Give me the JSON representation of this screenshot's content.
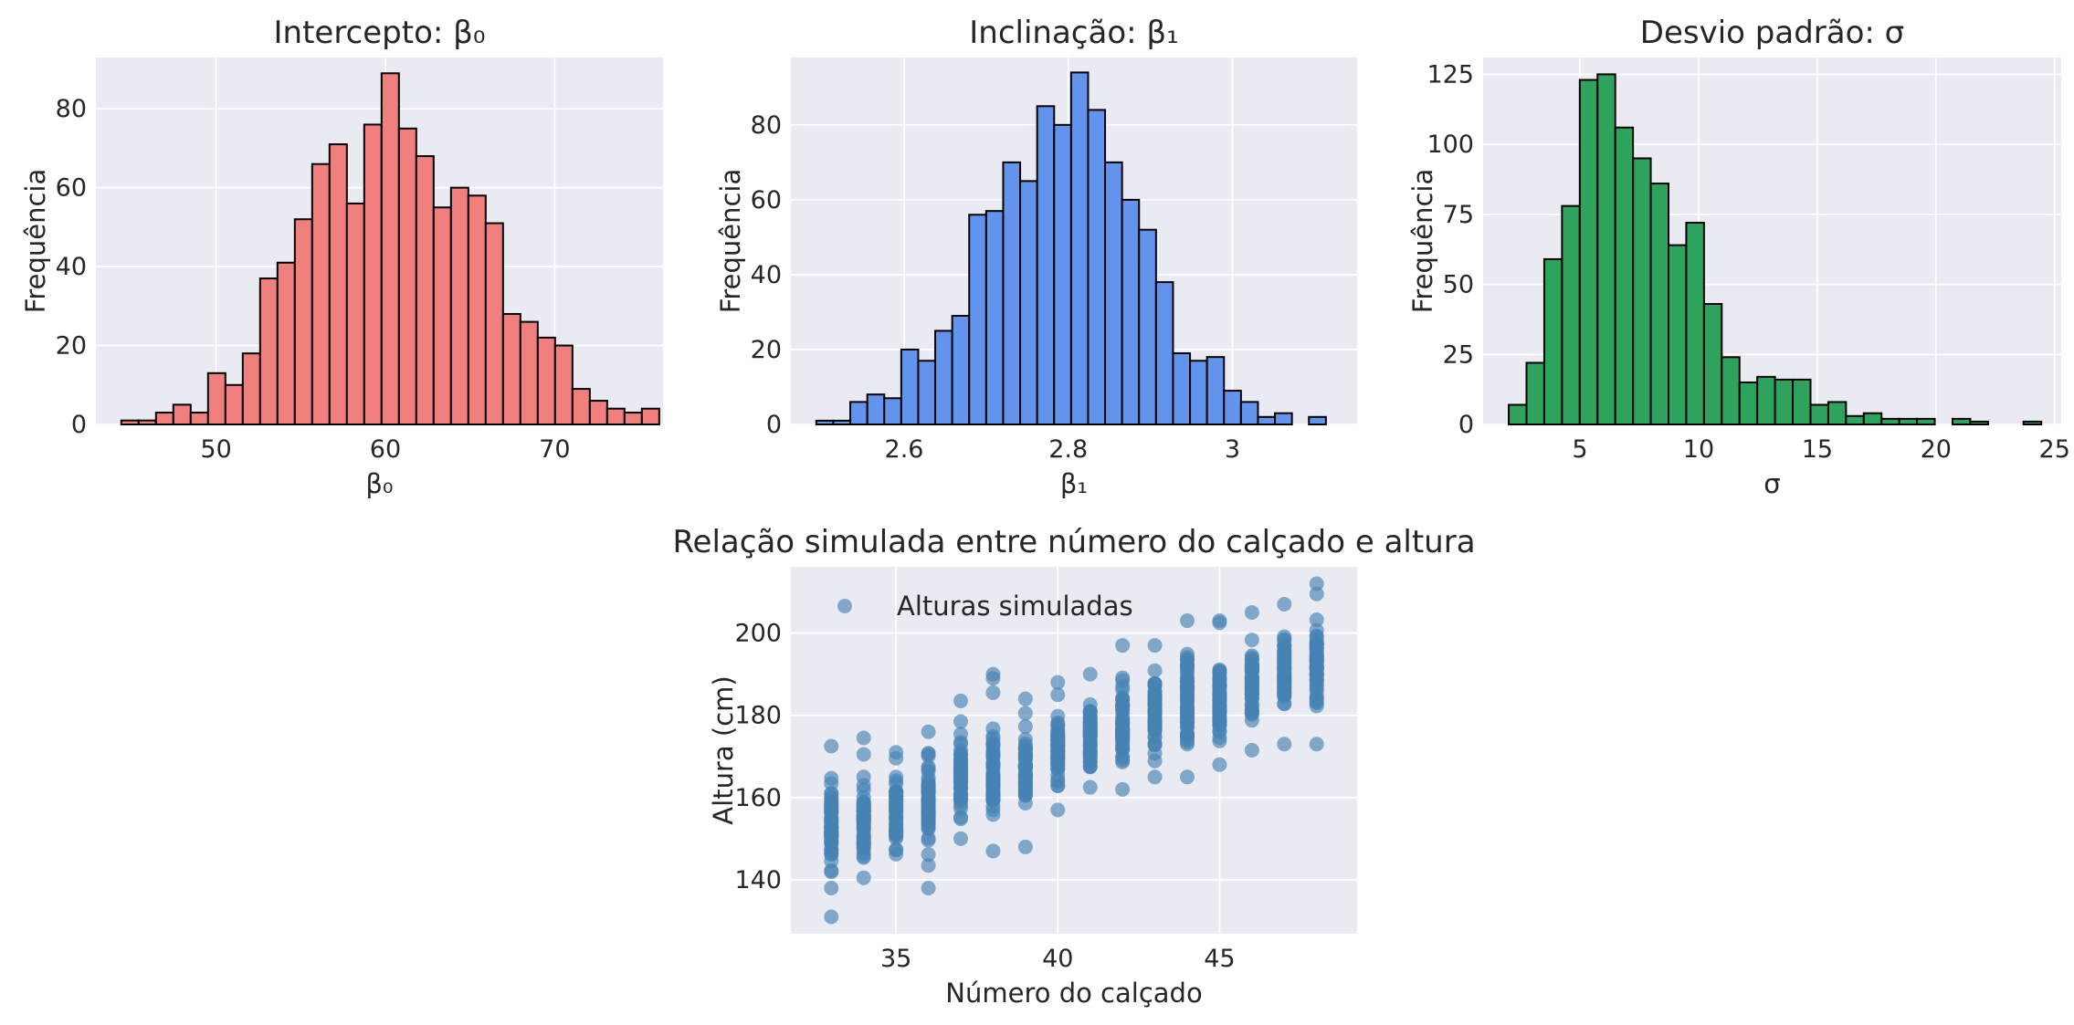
{
  "chart_data": [
    {
      "type": "bar",
      "title": "Intercepto: β₀",
      "xlabel": "β₀",
      "ylabel": "Frequência",
      "xlim": [
        42.9,
        76.4
      ],
      "ylim": [
        0,
        93
      ],
      "xticks": [
        50,
        60,
        70
      ],
      "yticks": [
        0,
        20,
        40,
        60,
        80
      ],
      "grid": true,
      "color": "#f07f7e",
      "edgecolor": "#000000",
      "bin_start": 44.4,
      "bin_width": 1.025,
      "values": [
        1,
        1,
        3,
        5,
        3,
        13,
        10,
        18,
        37,
        41,
        52,
        66,
        71,
        56,
        76,
        89,
        75,
        68,
        55,
        60,
        58,
        51,
        28,
        26,
        22,
        20,
        9,
        6,
        4,
        3,
        4
      ]
    },
    {
      "type": "bar",
      "title": "Inclinação: β₁",
      "xlabel": "β₁",
      "ylabel": "Frequência",
      "xlim": [
        2.462,
        3.152
      ],
      "ylim": [
        0,
        98
      ],
      "xticks": [
        2.6,
        2.8,
        3.0
      ],
      "yticks": [
        0,
        20,
        40,
        60,
        80
      ],
      "grid": true,
      "color": "#6394ed",
      "edgecolor": "#000000",
      "bin_start": 2.493,
      "bin_width": 0.0207,
      "values": [
        1,
        1,
        6,
        8,
        7,
        20,
        17,
        25,
        29,
        56,
        57,
        70,
        65,
        85,
        80,
        94,
        84,
        70,
        60,
        52,
        38,
        19,
        17,
        18,
        9,
        6,
        2,
        3,
        0,
        2
      ]
    },
    {
      "type": "bar",
      "title": "Desvio padrão: σ",
      "xlabel": "σ",
      "ylabel": "Frequência",
      "xlim": [
        0.92,
        25.28
      ],
      "ylim": [
        0,
        131
      ],
      "xticks": [
        5,
        10,
        15,
        20,
        25
      ],
      "yticks": [
        0,
        25,
        50,
        75,
        100,
        125
      ],
      "grid": true,
      "color": "#2ea35d",
      "edgecolor": "#000000",
      "bin_start": 2.0,
      "bin_width": 0.748,
      "values": [
        7,
        22,
        59,
        78,
        123,
        125,
        106,
        95,
        86,
        64,
        72,
        43,
        24,
        15,
        17,
        16,
        16,
        7,
        8,
        3,
        4,
        2,
        2,
        2,
        0,
        2,
        1,
        0,
        0,
        1
      ]
    },
    {
      "type": "scatter",
      "title": "Relação simulada entre número do calçado e altura",
      "xlabel": "Número do calçado",
      "ylabel": "Altura (cm)",
      "xlim": [
        31.75,
        49.25
      ],
      "ylim": [
        126.9,
        216.1
      ],
      "xticks": [
        35,
        40,
        45
      ],
      "yticks": [
        140,
        160,
        180,
        200
      ],
      "grid": true,
      "legend": {
        "label": "Alturas simuladas",
        "position": "top-left"
      },
      "color": "#4682b4",
      "alpha": 0.65,
      "x_values": [
        33,
        34,
        35,
        36,
        37,
        38,
        39,
        40,
        41,
        42,
        43,
        44,
        45,
        46,
        47,
        48
      ],
      "y_ranges": [
        [
          137,
          167.5
        ],
        [
          141,
          167
        ],
        [
          143.5,
          170.5
        ],
        [
          144,
          175.5
        ],
        [
          151,
          179.5
        ],
        [
          150.5,
          180
        ],
        [
          153,
          179
        ],
        [
          158,
          182
        ],
        [
          163,
          187.5
        ],
        [
          164,
          191
        ],
        [
          167,
          194
        ],
        [
          169.5,
          199
        ],
        [
          171,
          197
        ],
        [
          175,
          200
        ],
        [
          177,
          204.5
        ],
        [
          180,
          206
        ]
      ],
      "outliers": [
        [
          33,
          131
        ],
        [
          33,
          138
        ],
        [
          33,
          172.5
        ],
        [
          34,
          140.5
        ],
        [
          34,
          170.5
        ],
        [
          34,
          174.5
        ],
        [
          35,
          171
        ],
        [
          36,
          138
        ],
        [
          36,
          143.5
        ],
        [
          36,
          176
        ],
        [
          37,
          150
        ],
        [
          37,
          183.5
        ],
        [
          38,
          147
        ],
        [
          38,
          185.5
        ],
        [
          38,
          189
        ],
        [
          38,
          190
        ],
        [
          39,
          148
        ],
        [
          39,
          180.5
        ],
        [
          39,
          184
        ],
        [
          40,
          157
        ],
        [
          40,
          185
        ],
        [
          40,
          188
        ],
        [
          41,
          162.5
        ],
        [
          41,
          190
        ],
        [
          42,
          162
        ],
        [
          42,
          197
        ],
        [
          43,
          165
        ],
        [
          43,
          197
        ],
        [
          44,
          165
        ],
        [
          44,
          203
        ],
        [
          45,
          168
        ],
        [
          45,
          202.5
        ],
        [
          45,
          203
        ],
        [
          46,
          171.5
        ],
        [
          46,
          205
        ],
        [
          47,
          173
        ],
        [
          47,
          207
        ],
        [
          48,
          173
        ],
        [
          48,
          209.5
        ],
        [
          48,
          212
        ]
      ]
    }
  ]
}
